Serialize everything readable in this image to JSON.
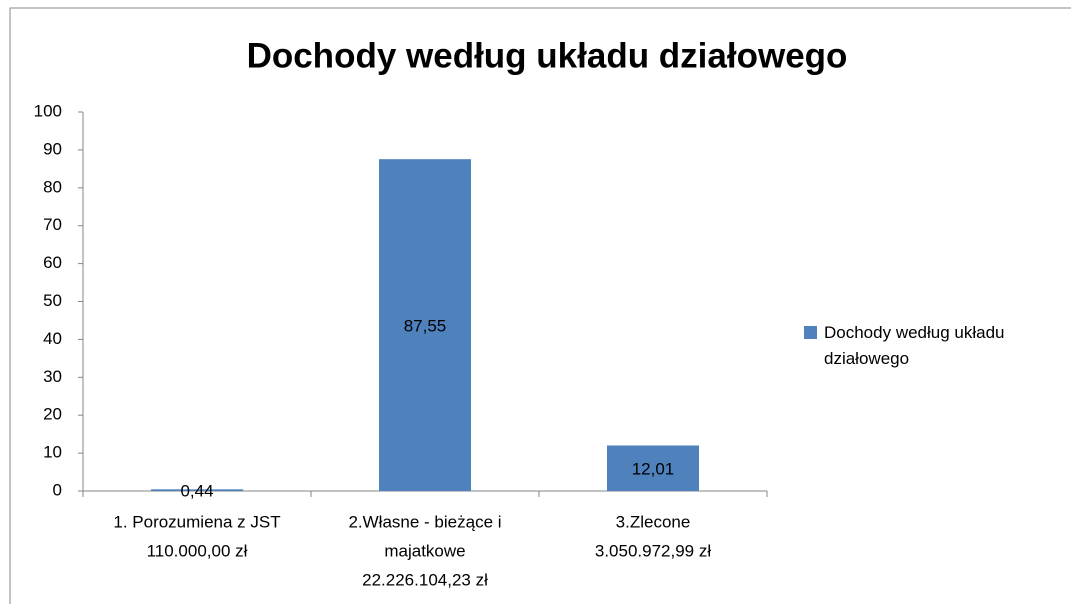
{
  "chart_data": {
    "type": "bar",
    "title": "Dochody według układu działowego",
    "categories": [
      [
        "1. Porozumiena z JST",
        "110.000,00 zł"
      ],
      [
        "2.Własne - bieżące i",
        "majatkowe",
        "22.226.104,23 zł"
      ],
      [
        "3.Zlecone",
        "3.050.972,99 zł"
      ]
    ],
    "series": [
      {
        "name": "Dochody według układu działowego",
        "color": "#4f81bd",
        "values": [
          0.44,
          87.55,
          12.01
        ],
        "value_labels": [
          "0,44",
          "87,55",
          "12,01"
        ]
      }
    ],
    "ylim": [
      0,
      100
    ],
    "yticks": [
      0,
      10,
      20,
      30,
      40,
      50,
      60,
      70,
      80,
      90,
      100
    ],
    "legend": "right"
  }
}
